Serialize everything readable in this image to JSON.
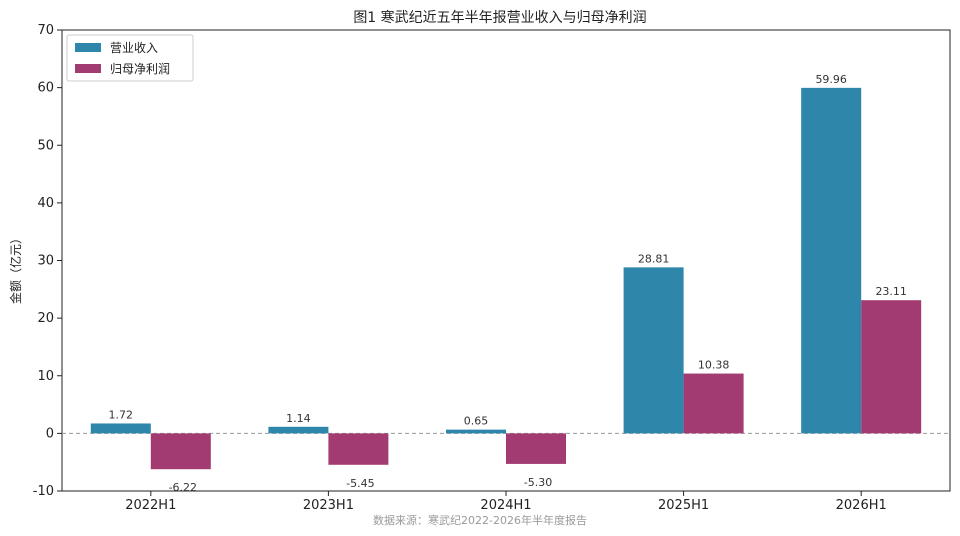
{
  "chart_data": {
    "type": "bar",
    "title": "图1 寒武纪近五年半年报营业收入与归母净利润",
    "ylabel": "金额（亿元）",
    "xlabel": "",
    "categories": [
      "2022H1",
      "2023H1",
      "2024H1",
      "2025H1",
      "2026H1"
    ],
    "series": [
      {
        "name": "营业收入",
        "color": "#2e86ab",
        "values": [
          1.72,
          1.14,
          0.65,
          28.81,
          59.96
        ]
      },
      {
        "name": "归母净利润",
        "color": "#a23b72",
        "values": [
          -6.22,
          -5.45,
          -5.3,
          10.38,
          23.11
        ]
      }
    ],
    "ylim": [
      -10,
      70
    ],
    "yticks": [
      -10,
      0,
      10,
      20,
      30,
      40,
      50,
      60,
      70
    ],
    "grid": false,
    "zero_line": {
      "style": "dashed",
      "color": "#999999"
    },
    "legend": "top-left",
    "source": "数据来源：寒武纪2022-2026年半年度报告"
  }
}
